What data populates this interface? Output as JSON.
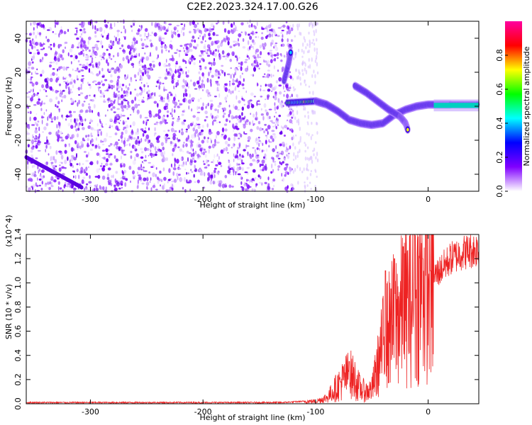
{
  "title": "C2E2.2023.324.17.00.G26",
  "chart_data": [
    {
      "type": "heatmap",
      "xlabel": "Height of straight line (km)",
      "ylabel": "Frequency (Hz)",
      "xlim": [
        -357,
        45
      ],
      "ylim": [
        -50,
        50
      ],
      "xticks": [
        -300,
        -200,
        -100,
        0
      ],
      "xtick_labels": [
        "-300",
        "-200",
        "-100",
        "0"
      ],
      "yticks": [
        -40,
        -20,
        0,
        20,
        40
      ],
      "ytick_labels": [
        "-40",
        "-20",
        "0",
        "20",
        "40"
      ],
      "colorbar": {
        "label": "Normalized spectral amplitude",
        "range": [
          0.0,
          1.0
        ],
        "ticks": [
          0.0,
          0.2,
          0.4,
          0.6,
          0.8
        ],
        "tick_labels": [
          "0.0",
          "0.2",
          "0.4",
          "0.6",
          "0.8"
        ],
        "colormap": [
          "#ffffff",
          "#8000ff",
          "#0000ff",
          "#00ffff",
          "#00ff00",
          "#ffff00",
          "#ff0000",
          "#ff00a0"
        ]
      },
      "noise_region_x": [
        -357,
        -120
      ],
      "signal_tracks": [
        {
          "name": "",
          "points": [
            [
              -125,
              2
            ],
            [
              -100,
              3
            ],
            [
              -90,
              1
            ],
            [
              -80,
              -3
            ],
            [
              -70,
              -8
            ],
            [
              -60,
              -10
            ],
            [
              -50,
              -11
            ],
            [
              -40,
              -10
            ],
            [
              -30,
              -5
            ],
            [
              -20,
              -2
            ],
            [
              -10,
              0
            ],
            [
              0,
              1
            ],
            [
              10,
              1
            ],
            [
              20,
              1
            ],
            [
              45,
              1
            ]
          ]
        },
        {
          "name": "",
          "points": [
            [
              -65,
              12
            ],
            [
              -55,
              8
            ],
            [
              -45,
              3
            ],
            [
              -35,
              -2
            ],
            [
              -25,
              -6
            ],
            [
              -20,
              -10
            ],
            [
              -18,
              -14
            ]
          ]
        },
        {
          "name": "",
          "points": [
            [
              -128,
              15
            ],
            [
              -124,
              25
            ],
            [
              -122,
              32
            ]
          ]
        }
      ]
    },
    {
      "type": "line",
      "xlabel": "Height of straight line (km)",
      "ylabel": "SNR (10 * v/v)",
      "y_multiplier": "(x10^4)",
      "xlim": [
        -357,
        45
      ],
      "ylim": [
        0.0,
        1.4
      ],
      "xticks": [
        -300,
        -200,
        -100,
        0
      ],
      "xtick_labels": [
        "-300",
        "-200",
        "-100",
        "0"
      ],
      "yticks": [
        0.0,
        0.2,
        0.4,
        0.6,
        0.8,
        1.0,
        1.2,
        1.4
      ],
      "ytick_labels": [
        "0.0",
        "0.2",
        "0.4",
        "0.6",
        "0.8",
        "1.0",
        "1.2",
        "1.4"
      ],
      "series": [
        {
          "color": "#ee2222",
          "envelope_x": [
            -357,
            -300,
            -200,
            -130,
            -110,
            -100,
            -90,
            -80,
            -75,
            -70,
            -65,
            -60,
            -55,
            -50,
            -45,
            -40,
            -35,
            -30,
            -25,
            -20,
            -15,
            -10,
            -5,
            0,
            5,
            10,
            15,
            20,
            30,
            40,
            45
          ],
          "envelope_y": [
            0.01,
            0.01,
            0.01,
            0.01,
            0.02,
            0.02,
            0.05,
            0.15,
            0.2,
            0.25,
            0.2,
            0.12,
            0.1,
            0.12,
            0.3,
            0.5,
            0.6,
            0.7,
            0.75,
            0.8,
            0.85,
            0.9,
            0.95,
            1.0,
            1.05,
            1.1,
            1.15,
            1.2,
            1.25,
            1.27,
            1.28
          ],
          "peaks": [
            [
              -70,
              0.35
            ],
            [
              -38,
              1.1
            ],
            [
              -33,
              0.95
            ],
            [
              -30,
              1.2
            ],
            [
              -22,
              1.3
            ],
            [
              -12,
              1.42
            ],
            [
              -5,
              1.2
            ],
            [
              2,
              1.1
            ]
          ]
        }
      ]
    }
  ]
}
